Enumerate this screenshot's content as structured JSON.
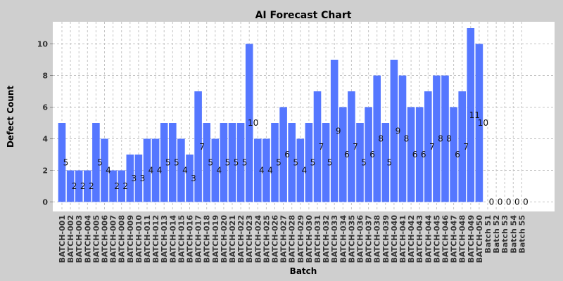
{
  "chart_data": {
    "type": "bar",
    "title": "AI Forecast Chart",
    "xlabel": "Batch",
    "ylabel": "Defect Count",
    "ylim": [
      -0.6,
      11.4
    ],
    "yticks": [
      0,
      2,
      4,
      6,
      8,
      10
    ],
    "grid": true,
    "legend": "none",
    "bar_color": "#5577ff",
    "categories": [
      "BATCH-001",
      "BATCH-002",
      "BATCH-003",
      "BATCH-004",
      "BATCH-005",
      "BATCH-006",
      "BATCH-007",
      "BATCH-008",
      "BATCH-009",
      "BATCH-010",
      "BATCH-011",
      "BATCH-012",
      "BATCH-013",
      "BATCH-014",
      "BATCH-015",
      "BATCH-016",
      "BATCH-017",
      "BATCH-018",
      "BATCH-019",
      "BATCH-020",
      "BATCH-021",
      "BATCH-022",
      "BATCH-023",
      "BATCH-024",
      "BATCH-025",
      "BATCH-026",
      "BATCH-027",
      "BATCH-028",
      "BATCH-029",
      "BATCH-030",
      "BATCH-031",
      "BATCH-032",
      "BATCH-033",
      "BATCH-034",
      "BATCH-035",
      "BATCH-036",
      "BATCH-037",
      "BATCH-038",
      "BATCH-039",
      "BATCH-040",
      "BATCH-041",
      "BATCH-042",
      "BATCH-043",
      "BATCH-044",
      "BATCH-045",
      "BATCH-046",
      "BATCH-047",
      "BATCH-048",
      "BATCH-049",
      "BATCH-050",
      "Batch 51",
      "Batch 52",
      "Batch 53",
      "Batch 54",
      "Batch 55"
    ],
    "values": [
      5,
      2,
      2,
      2,
      5,
      4,
      2,
      2,
      3,
      3,
      4,
      4,
      5,
      5,
      4,
      3,
      7,
      5,
      4,
      5,
      5,
      5,
      10,
      4,
      4,
      5,
      6,
      5,
      4,
      5,
      7,
      5,
      9,
      6,
      7,
      5,
      6,
      8,
      5,
      9,
      8,
      6,
      6,
      7,
      8,
      8,
      6,
      7,
      11,
      10,
      0,
      0,
      0,
      0,
      0
    ]
  }
}
